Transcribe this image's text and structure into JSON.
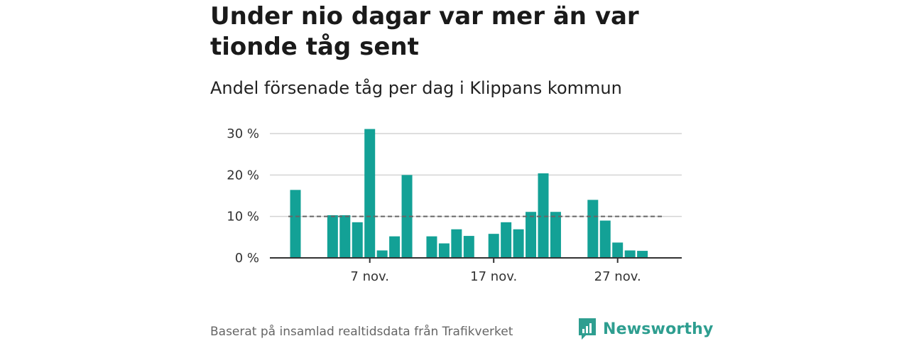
{
  "header": {
    "title": "Under nio dagar var mer än var tionde tåg sent",
    "subtitle": "Andel försenade tåg per dag i Klippans kommun"
  },
  "footer": {
    "source": "Baserat på insamlad realtidsdata från Trafikverket",
    "brand": "Newsworthy"
  },
  "colors": {
    "bar": "#13a196",
    "reference_line": "#666666",
    "grid": "#d4d4d4",
    "axis": "#333333",
    "brand": "#2e9e90"
  },
  "icons": {
    "brand_logo": "bar-chart-speech-bubble-icon"
  },
  "chart_data": {
    "type": "bar",
    "x": [
      "2024-11-01",
      "2024-11-02",
      "2024-11-03",
      "2024-11-04",
      "2024-11-05",
      "2024-11-06",
      "2024-11-07",
      "2024-11-08",
      "2024-11-09",
      "2024-11-10",
      "2024-11-11",
      "2024-11-12",
      "2024-11-13",
      "2024-11-14",
      "2024-11-15",
      "2024-11-16",
      "2024-11-17",
      "2024-11-18",
      "2024-11-19",
      "2024-11-20",
      "2024-11-21",
      "2024-11-22",
      "2024-11-23",
      "2024-11-24",
      "2024-11-25",
      "2024-11-26",
      "2024-11-27",
      "2024-11-28",
      "2024-11-29",
      "2024-11-30"
    ],
    "values": [
      16.4,
      null,
      null,
      10.3,
      10.3,
      8.6,
      31.1,
      1.8,
      5.2,
      20.0,
      null,
      5.2,
      3.5,
      6.9,
      5.3,
      null,
      5.8,
      8.6,
      6.9,
      11.1,
      20.4,
      11.1,
      null,
      null,
      14.0,
      9.0,
      3.7,
      1.8,
      1.7,
      null
    ],
    "reference_line": 10,
    "ylim": [
      0,
      30
    ],
    "yticks": [
      "0 %",
      "10 %",
      "20 %",
      "30 %"
    ],
    "ytick_values": [
      0,
      10,
      20,
      30
    ],
    "xtick_labels": [
      "7 nov.",
      "17 nov.",
      "27 nov."
    ],
    "xtick_dates": [
      "2024-11-07",
      "2024-11-17",
      "2024-11-27"
    ],
    "grid": true,
    "xlabel": "",
    "ylabel": ""
  }
}
